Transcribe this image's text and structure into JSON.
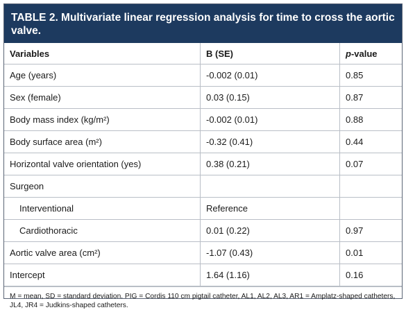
{
  "title": "TABLE 2. Multivariate linear regression analysis for time to cross the aortic valve.",
  "header": {
    "col1": "Variables",
    "col2": "B (SE)",
    "col3_italic": "p",
    "col3_rest": "-value"
  },
  "rows": [
    {
      "variable": "Age (years)",
      "b_se": "-0.002 (0.01)",
      "p": "0.85"
    },
    {
      "variable": "Sex (female)",
      "b_se": "0.03 (0.15)",
      "p": "0.87"
    },
    {
      "variable": "Body mass index (kg/m²)",
      "b_se": "-0.002 (0.01)",
      "p": "0.88"
    },
    {
      "variable": "Body surface area (m²)",
      "b_se": "-0.32 (0.41)",
      "p": "0.44"
    },
    {
      "variable": "Horizontal valve orientation (yes)",
      "b_se": "0.38 (0.21)",
      "p": "0.07"
    },
    {
      "variable": "Surgeon",
      "b_se": "",
      "p": ""
    },
    {
      "variable": "Interventional",
      "b_se": "Reference",
      "p": ""
    },
    {
      "variable": "Cardiothoracic",
      "b_se": "0.01 (0.22)",
      "p": "0.97"
    },
    {
      "variable": "Aortic valve area (cm²)",
      "b_se": "-1.07 (0.43)",
      "p": "0.01"
    },
    {
      "variable": "Intercept",
      "b_se": "1.64 (1.16)",
      "p": "0.16"
    }
  ],
  "footnote": "M = mean, SD = standard deviation. PIG = Cordis 110 cm pigtail catheter, AL1, AL2, AL3, AR1 = Amplatz-shaped catheters, JL4, JR4 = Judkins-shaped catheters."
}
